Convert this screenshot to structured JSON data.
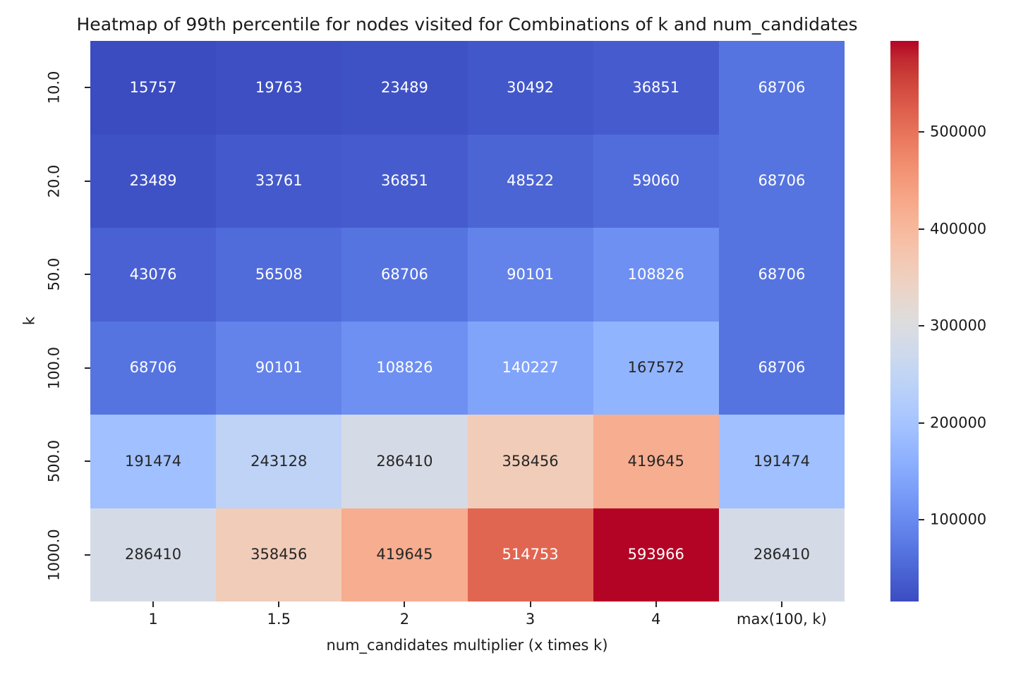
{
  "figure": {
    "background": "#ffffff",
    "text_color": "#1a1a1a"
  },
  "chart_data": {
    "type": "heatmap",
    "title": "Heatmap of 99th percentile for nodes visited for Combinations of k and num_candidates",
    "xlabel": "num_candidates multiplier (x times k)",
    "ylabel": "k",
    "x_ticklabels": [
      "1",
      "1.5",
      "2",
      "3",
      "4",
      "max(100, k)"
    ],
    "y_ticklabels": [
      "10.0",
      "20.0",
      "50.0",
      "100.0",
      "500.0",
      "1000.0"
    ],
    "values": [
      [
        15757,
        19763,
        23489,
        30492,
        36851,
        68706
      ],
      [
        23489,
        33761,
        36851,
        48522,
        59060,
        68706
      ],
      [
        43076,
        56508,
        68706,
        90101,
        108826,
        68706
      ],
      [
        68706,
        90101,
        108826,
        140227,
        167572,
        68706
      ],
      [
        191474,
        243128,
        286410,
        358456,
        419645,
        191474
      ],
      [
        286410,
        358456,
        419645,
        514753,
        593966,
        286410
      ]
    ],
    "vmin": 15757,
    "vmax": 593966,
    "colormap": "coolwarm",
    "colormap_rgb": [
      [
        59,
        76,
        192
      ],
      [
        68,
        90,
        204
      ],
      [
        77,
        104,
        215
      ],
      [
        87,
        117,
        225
      ],
      [
        98,
        130,
        234
      ],
      [
        108,
        142,
        241
      ],
      [
        119,
        154,
        247
      ],
      [
        130,
        165,
        251
      ],
      [
        141,
        176,
        254
      ],
      [
        152,
        185,
        255
      ],
      [
        163,
        194,
        255
      ],
      [
        174,
        201,
        253
      ],
      [
        184,
        208,
        249
      ],
      [
        194,
        213,
        244
      ],
      [
        204,
        217,
        238
      ],
      [
        213,
        219,
        230
      ],
      [
        221,
        221,
        221
      ],
      [
        229,
        216,
        209
      ],
      [
        236,
        211,
        197
      ],
      [
        241,
        204,
        185
      ],
      [
        245,
        196,
        173
      ],
      [
        247,
        187,
        160
      ],
      [
        247,
        177,
        148
      ],
      [
        247,
        166,
        135
      ],
      [
        244,
        154,
        123
      ],
      [
        241,
        141,
        111
      ],
      [
        236,
        127,
        99
      ],
      [
        229,
        112,
        88
      ],
      [
        222,
        96,
        77
      ],
      [
        213,
        80,
        66
      ],
      [
        203,
        62,
        56
      ],
      [
        192,
        40,
        47
      ],
      [
        180,
        4,
        38
      ]
    ],
    "colorbar_ticks": [
      100000,
      200000,
      300000,
      400000,
      500000
    ],
    "colorbar_position": "right",
    "annot_text_colors": {
      "light": "#ffffff",
      "dark": "#262626"
    },
    "grid": false
  }
}
